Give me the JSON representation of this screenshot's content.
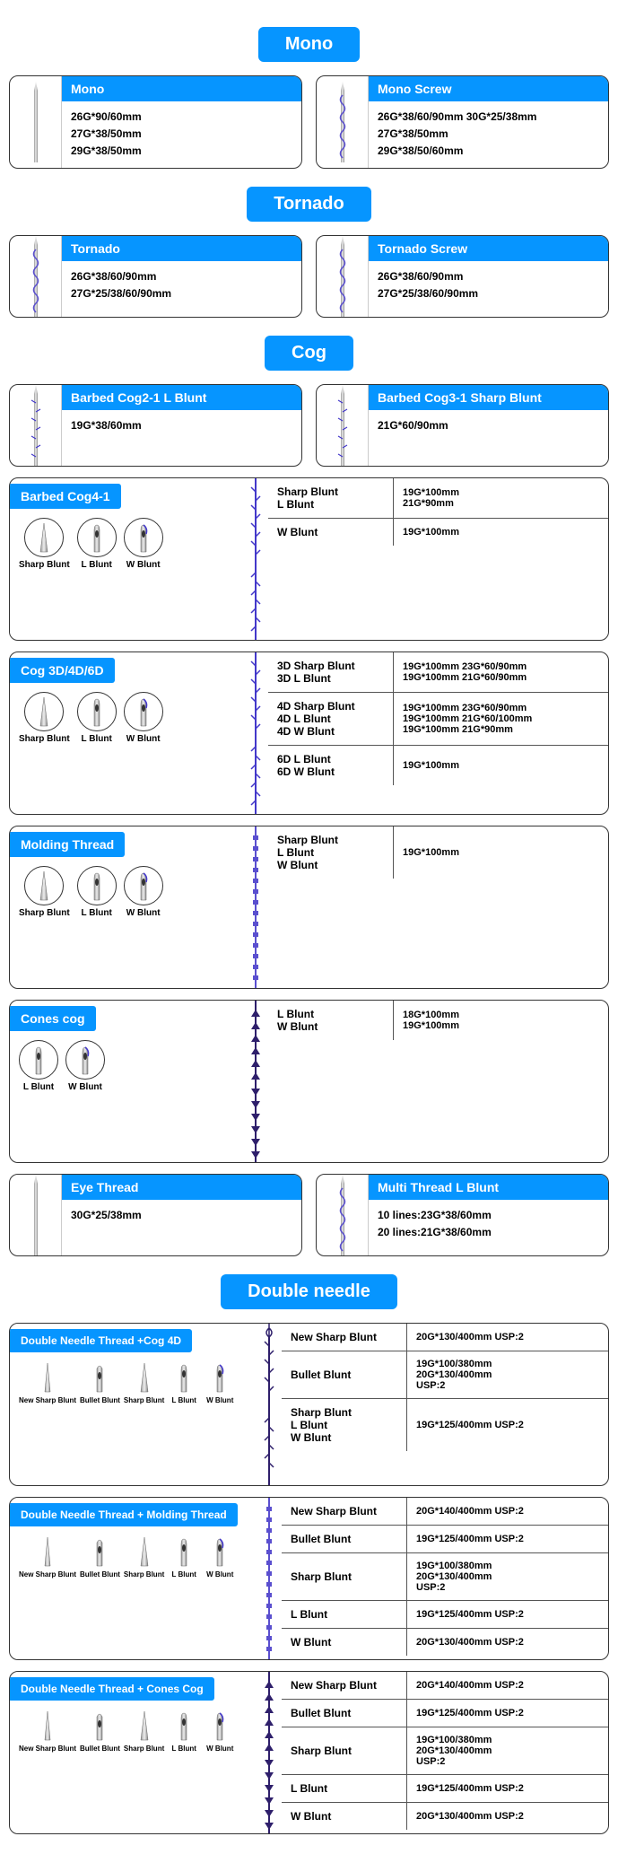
{
  "colors": {
    "accent": "#0695ff",
    "border": "#333333",
    "text": "#111111"
  },
  "sections": {
    "mono": {
      "header": "Mono",
      "cards": [
        {
          "title": "Mono",
          "specs": [
            "26G*90/60mm",
            "27G*38/50mm",
            "29G*38/50mm"
          ]
        },
        {
          "title": "Mono Screw",
          "specs": [
            "26G*38/60/90mm 30G*25/38mm",
            "27G*38/50mm",
            "29G*38/50/60mm"
          ]
        }
      ]
    },
    "tornado": {
      "header": "Tornado",
      "cards": [
        {
          "title": "Tornado",
          "specs": [
            "26G*38/60/90mm",
            "27G*25/38/60/90mm"
          ]
        },
        {
          "title": "Tornado Screw",
          "specs": [
            "26G*38/60/90mm",
            "27G*25/38/60/90mm"
          ]
        }
      ]
    },
    "cog": {
      "header": "Cog",
      "top_cards": [
        {
          "title": "Barbed Cog2-1 L Blunt",
          "specs": [
            "19G*38/60mm"
          ]
        },
        {
          "title": "Barbed Cog3-1 Sharp Blunt",
          "specs": [
            "21G*60/90mm"
          ]
        }
      ],
      "blocks": [
        {
          "title": "Barbed Cog4-1",
          "tips": [
            "Sharp Blunt",
            "L Blunt",
            "W Blunt"
          ],
          "rows": [
            {
              "labels": [
                "Sharp Blunt",
                "L Blunt"
              ],
              "vals": [
                "19G*100mm",
                "21G*90mm"
              ]
            },
            {
              "labels": [
                "W Blunt"
              ],
              "vals": [
                "19G*100mm"
              ]
            }
          ]
        },
        {
          "title": "Cog 3D/4D/6D",
          "tips": [
            "Sharp Blunt",
            "L Blunt",
            "W Blunt"
          ],
          "rows": [
            {
              "labels": [
                "3D Sharp Blunt",
                "3D L Blunt"
              ],
              "vals": [
                "19G*100mm 23G*60/90mm",
                "19G*100mm 21G*60/90mm"
              ]
            },
            {
              "labels": [
                "4D Sharp Blunt",
                "4D L Blunt",
                "4D W Blunt"
              ],
              "vals": [
                "19G*100mm 23G*60/90mm",
                "19G*100mm 21G*60/100mm",
                "19G*100mm 21G*90mm"
              ]
            },
            {
              "labels": [
                "6D L Blunt",
                "6D W Blunt"
              ],
              "vals": [
                "19G*100mm"
              ]
            }
          ]
        },
        {
          "title": "Molding Thread",
          "tips": [
            "Sharp Blunt",
            "L Blunt",
            "W Blunt"
          ],
          "rows": [
            {
              "labels": [
                "Sharp Blunt",
                "L Blunt",
                "W Blunt"
              ],
              "vals": [
                "19G*100mm"
              ]
            }
          ]
        },
        {
          "title": "Cones cog",
          "tips": [
            "L Blunt",
            "W Blunt"
          ],
          "rows": [
            {
              "labels": [
                "L Blunt",
                "W Blunt"
              ],
              "vals": [
                "18G*100mm",
                "19G*100mm"
              ]
            }
          ]
        }
      ],
      "bottom_cards": [
        {
          "title": "Eye Thread",
          "specs": [
            "30G*25/38mm"
          ]
        },
        {
          "title": "Multi Thread L Blunt",
          "specs": [
            "10 lines:23G*38/60mm",
            "20 lines:21G*38/60mm"
          ]
        }
      ]
    },
    "double": {
      "header": "Double needle",
      "blocks": [
        {
          "title": "Double Needle Thread +Cog 4D",
          "tips": [
            "New Sharp Blunt",
            "Bullet Blunt",
            "Sharp Blunt",
            "L Blunt",
            "W Blunt"
          ],
          "rows": [
            {
              "labels": [
                "New Sharp Blunt"
              ],
              "vals": [
                "20G*130/400mm USP:2"
              ]
            },
            {
              "labels": [
                "Bullet Blunt"
              ],
              "vals": [
                "19G*100/380mm",
                "20G*130/400mm",
                "USP:2"
              ]
            },
            {
              "labels": [
                "Sharp Blunt",
                "L Blunt",
                "W Blunt"
              ],
              "vals": [
                "19G*125/400mm USP:2"
              ]
            }
          ]
        },
        {
          "title": "Double Needle Thread + Molding Thread",
          "tips": [
            "New Sharp Blunt",
            "Bullet Blunt",
            "Sharp Blunt",
            "L Blunt",
            "W Blunt"
          ],
          "rows": [
            {
              "labels": [
                "New Sharp Blunt"
              ],
              "vals": [
                "20G*140/400mm USP:2"
              ]
            },
            {
              "labels": [
                "Bullet Blunt"
              ],
              "vals": [
                "19G*125/400mm USP:2"
              ]
            },
            {
              "labels": [
                "Sharp Blunt"
              ],
              "vals": [
                "19G*100/380mm",
                "20G*130/400mm",
                "USP:2"
              ]
            },
            {
              "labels": [
                "L Blunt"
              ],
              "vals": [
                "19G*125/400mm USP:2"
              ]
            },
            {
              "labels": [
                "W Blunt"
              ],
              "vals": [
                "20G*130/400mm USP:2"
              ]
            }
          ]
        },
        {
          "title": "Double Needle Thread + Cones Cog",
          "tips": [
            "New Sharp Blunt",
            "Bullet Blunt",
            "Sharp Blunt",
            "L Blunt",
            "W Blunt"
          ],
          "rows": [
            {
              "labels": [
                "New Sharp Blunt"
              ],
              "vals": [
                "20G*140/400mm USP:2"
              ]
            },
            {
              "labels": [
                "Bullet Blunt"
              ],
              "vals": [
                "19G*125/400mm USP:2"
              ]
            },
            {
              "labels": [
                "Sharp Blunt"
              ],
              "vals": [
                "19G*100/380mm",
                "20G*130/400mm",
                "USP:2"
              ]
            },
            {
              "labels": [
                "L Blunt"
              ],
              "vals": [
                "19G*125/400mm USP:2"
              ]
            },
            {
              "labels": [
                "W Blunt"
              ],
              "vals": [
                "20G*130/400mm USP:2"
              ]
            }
          ]
        }
      ]
    }
  }
}
